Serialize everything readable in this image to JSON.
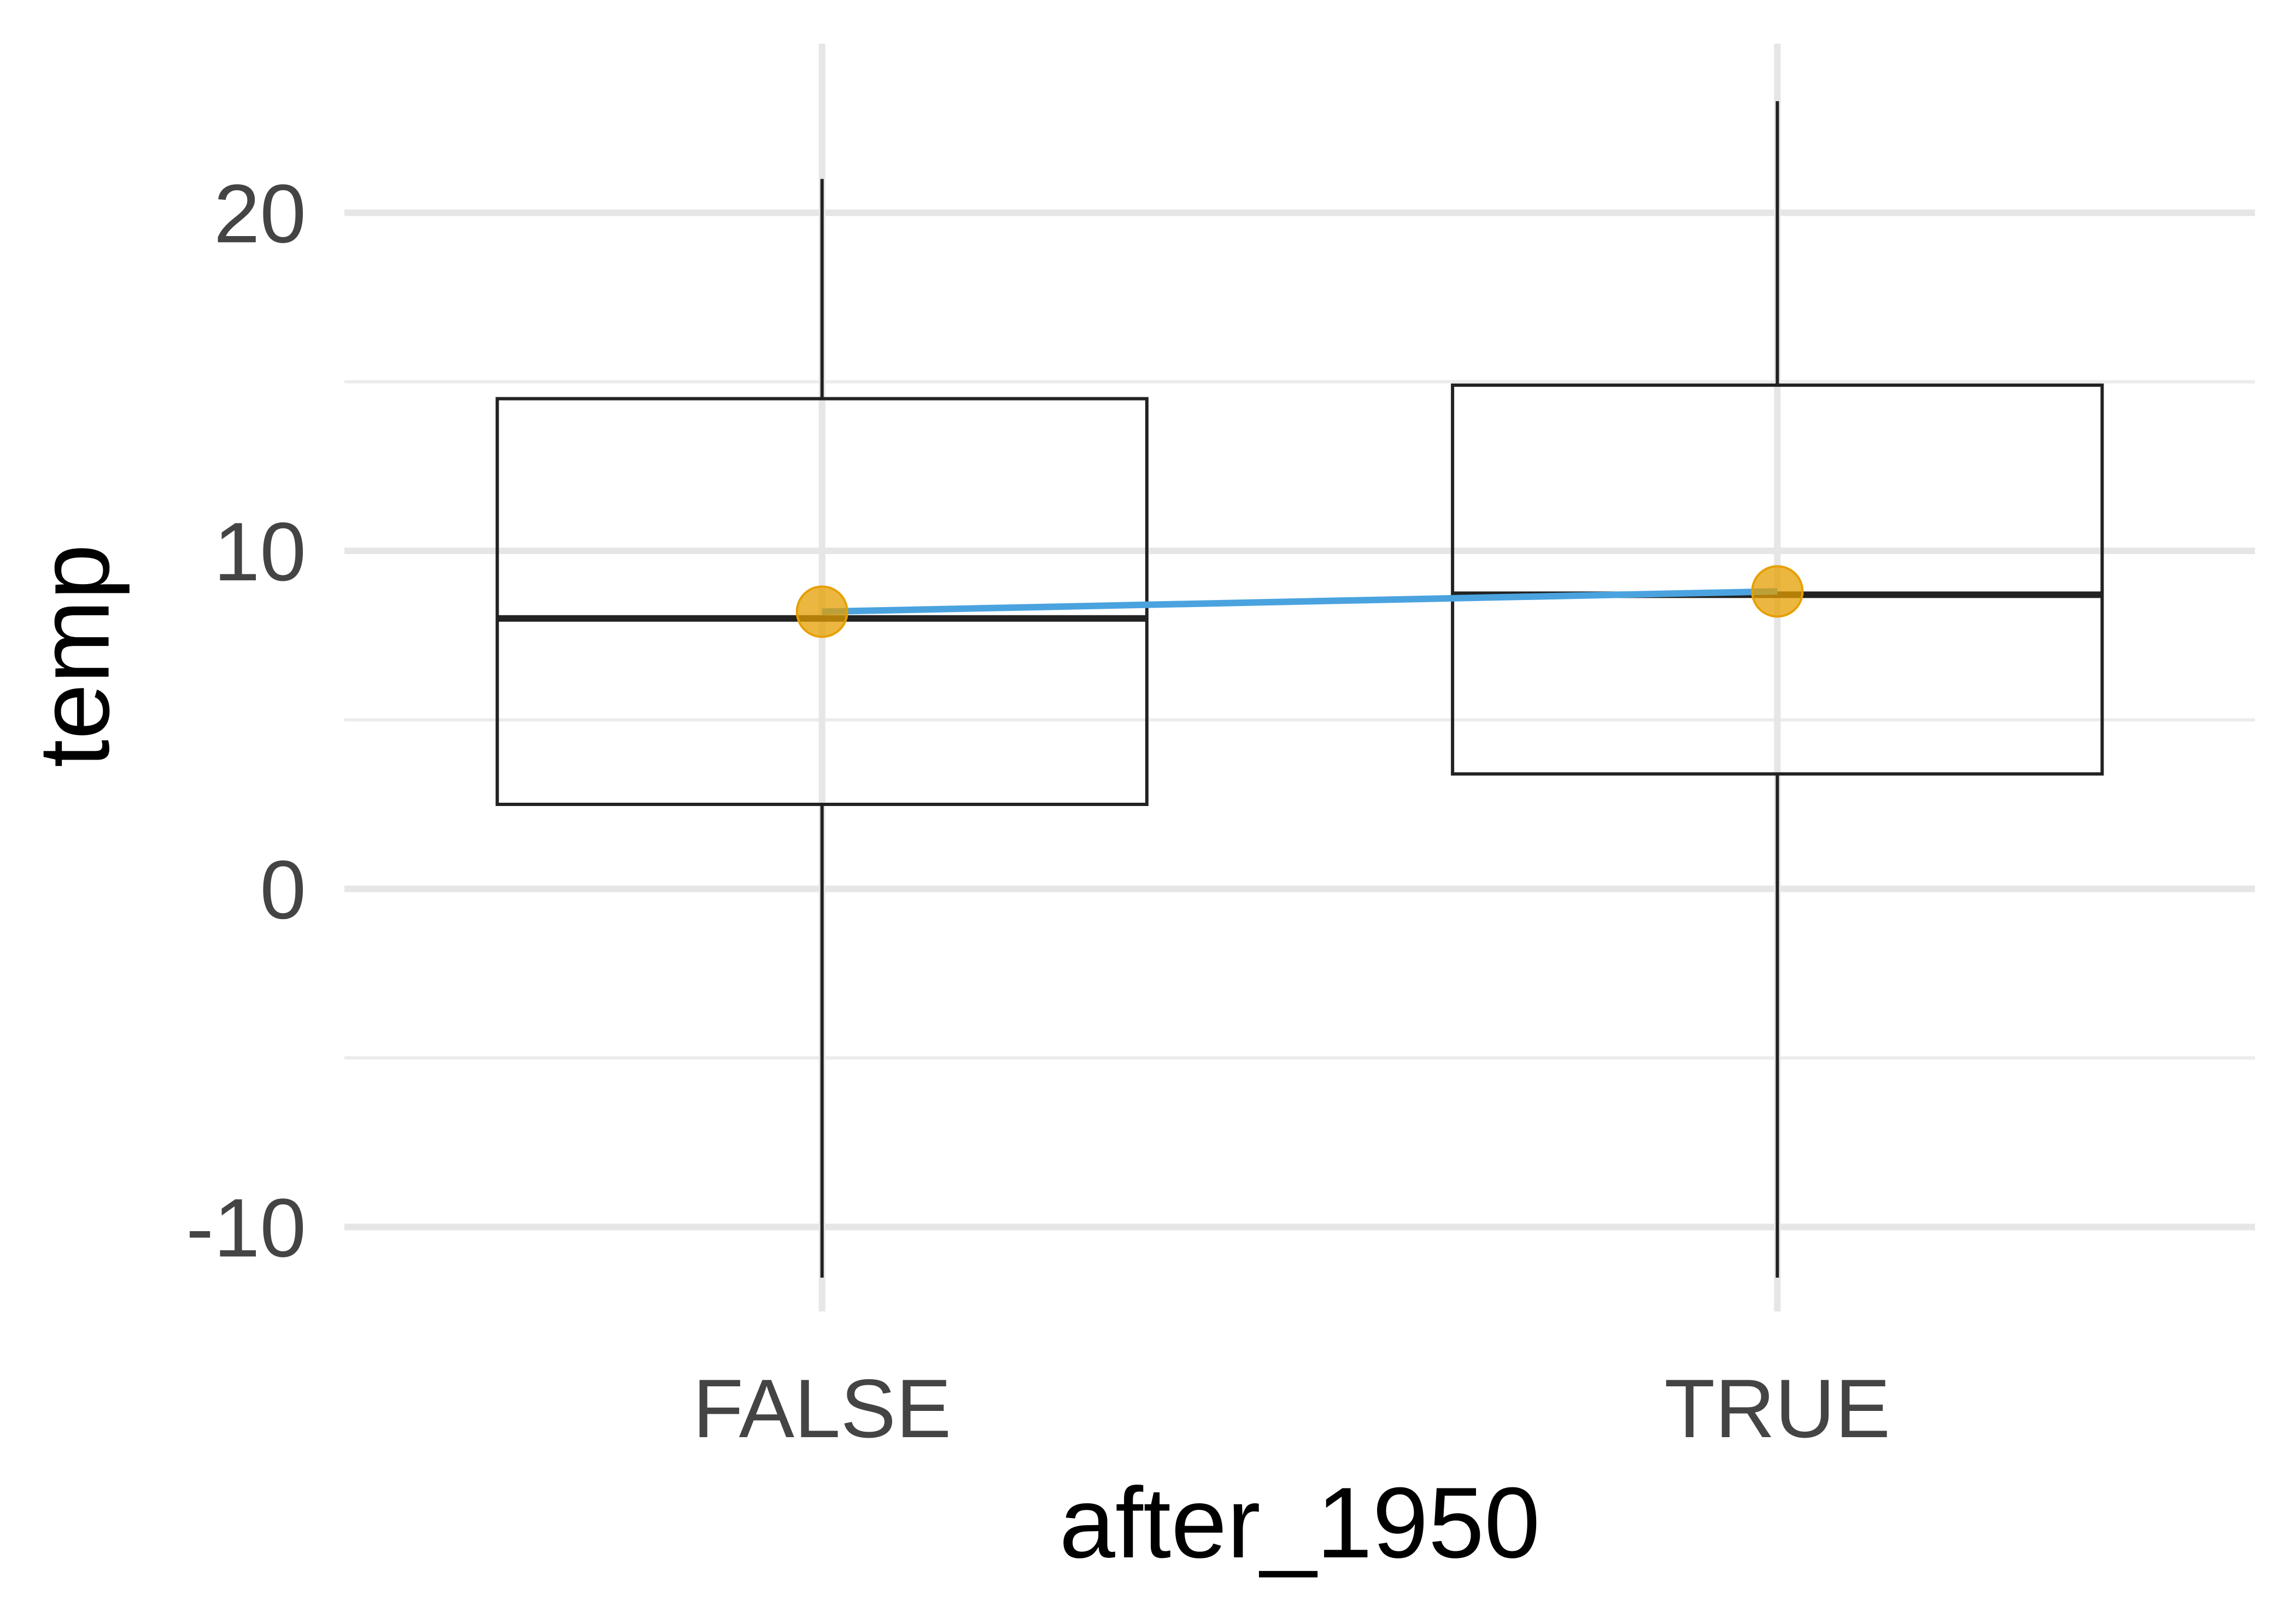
{
  "chart_data": {
    "type": "box",
    "xlabel": "after_1950",
    "ylabel": "temp",
    "categories": [
      "FALSE",
      "TRUE"
    ],
    "ylim": [
      -12.5,
      25
    ],
    "y_ticks": [
      -10,
      0,
      10,
      20
    ],
    "y_minor_ticks": [
      -5,
      5,
      15
    ],
    "boxes": [
      {
        "category": "FALSE",
        "min": -11.5,
        "q1": 2.5,
        "median": 8.0,
        "q3": 14.5,
        "max": 21.0,
        "mean": 8.2
      },
      {
        "category": "TRUE",
        "min": -11.5,
        "q1": 3.4,
        "median": 8.7,
        "q3": 14.9,
        "max": 23.3,
        "mean": 8.8
      }
    ],
    "mean_line_color": "#4aa3df",
    "mean_point_color": "#e69f00",
    "box_color": "#222222",
    "grid": true,
    "legend": "none"
  }
}
